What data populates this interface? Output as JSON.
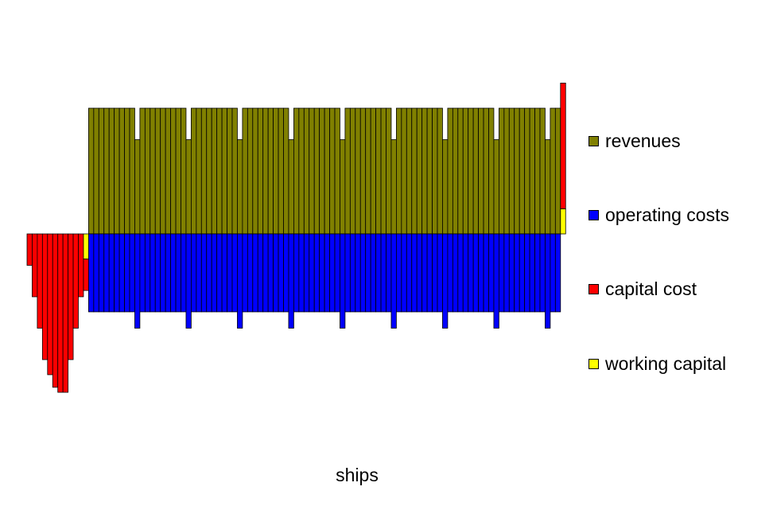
{
  "chart_data": {
    "type": "bar",
    "stacked": true,
    "title": "",
    "xlabel": "ships",
    "ylabel": "",
    "axes_visible": false,
    "grid": false,
    "legend_position": "right",
    "n_bars": 105,
    "bars_per_cycle": 10,
    "series": [
      {
        "key": "revenues",
        "name": "revenues",
        "color": "#808000",
        "rule": "1.0 for operating years, 0.75 in the last year of each 10-year cycle, 0 in construction years and the terminal year",
        "full_value": 1.0,
        "reduced_value": 0.75
      },
      {
        "key": "operating_costs",
        "name": "operating costs",
        "color": "#0000ff",
        "rule": "-0.62 for operating years, -0.75 in the last year of each 10-year cycle",
        "full_value": -0.62,
        "reduced_value": -0.75
      },
      {
        "key": "capital_cost",
        "name": "capital cost",
        "color": "#ff0000",
        "construction_values": [
          -0.25,
          -0.5,
          -0.75,
          -1.0,
          -1.12,
          -1.22,
          -1.26,
          -1.26,
          -1.0,
          -0.75,
          -0.5,
          -0.25
        ],
        "terminal_value": 1.0
      },
      {
        "key": "working_capital",
        "name": "working capital",
        "color": "#ffff00",
        "initial_value": -0.2,
        "terminal_value": 0.2
      }
    ],
    "ylim": [
      -1.3,
      1.2
    ]
  },
  "legend": [
    {
      "label": "revenues",
      "color": "#808000"
    },
    {
      "label": "operating costs",
      "color": "#0000ff"
    },
    {
      "label": "capital cost",
      "color": "#ff0000"
    },
    {
      "label": "working capital",
      "color": "#ffff00"
    }
  ]
}
